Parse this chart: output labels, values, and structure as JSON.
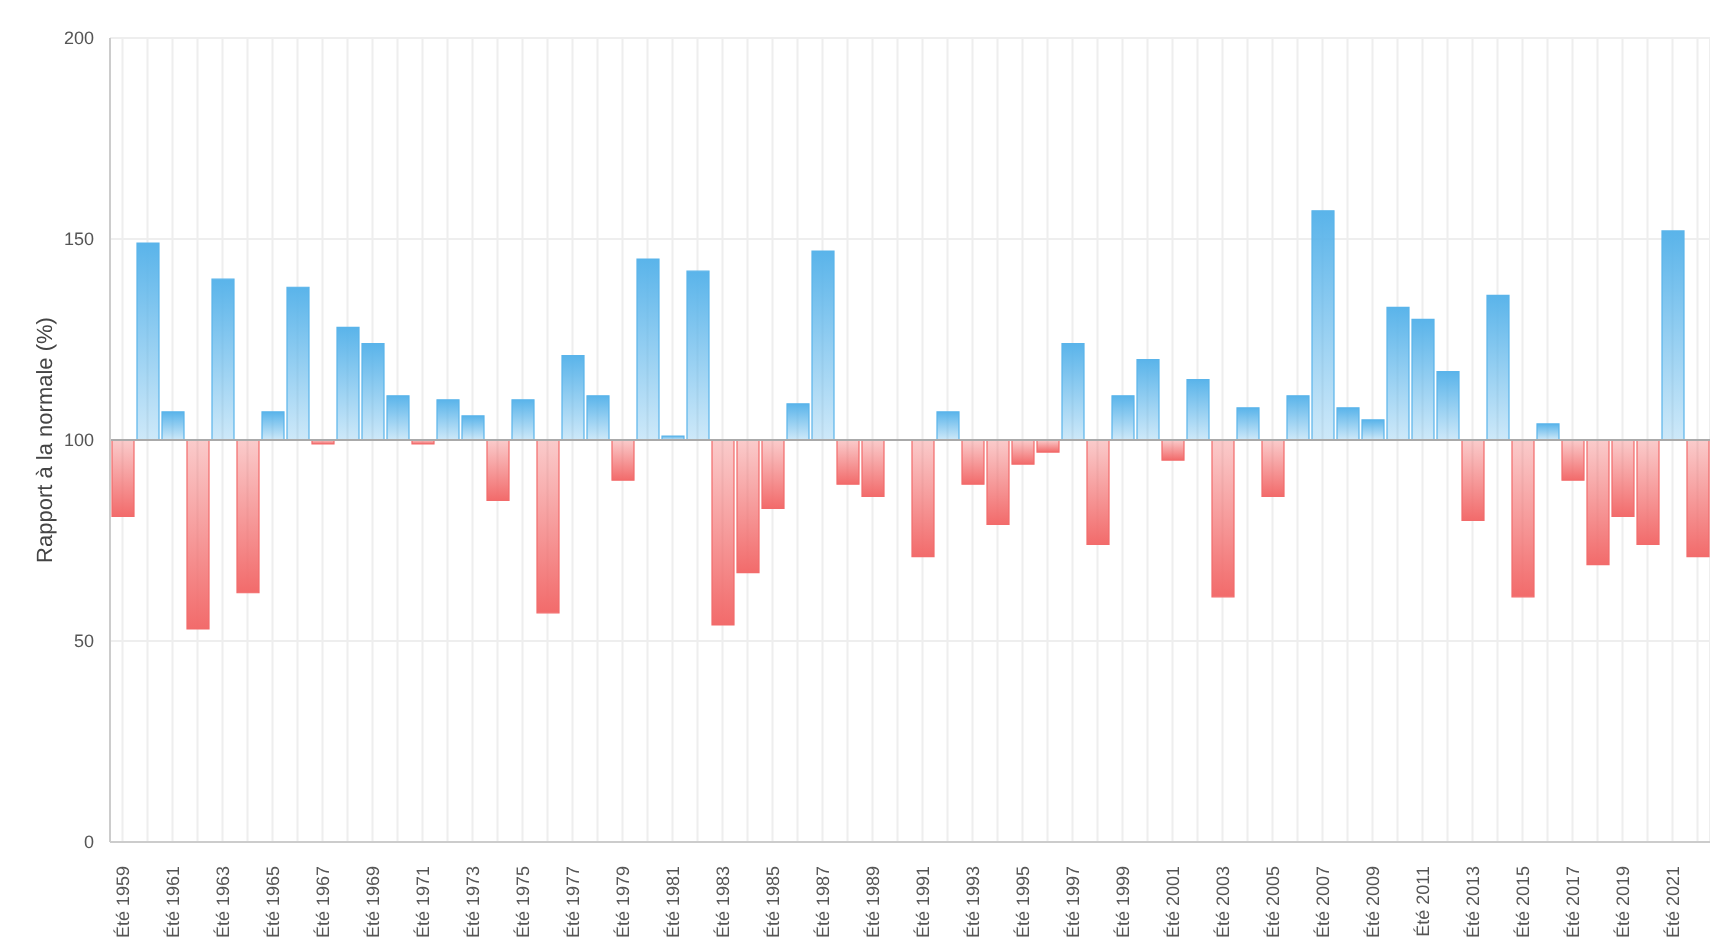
{
  "chart_data": {
    "type": "bar",
    "ylabel": "Rapport à la normale (%)",
    "categories": [
      "Été 1959",
      null,
      "Été 1961",
      null,
      "Été 1963",
      null,
      "Été 1965",
      null,
      "Été 1967",
      null,
      "Été 1969",
      null,
      "Été 1971",
      null,
      "Été 1973",
      null,
      "Été 1975",
      null,
      "Été 1977",
      null,
      "Été 1979",
      null,
      "Été 1981",
      null,
      "Été 1983",
      null,
      "Été 1985",
      null,
      "Été 1987",
      null,
      "Été 1989",
      null,
      "Été 1991",
      null,
      "Été 1993",
      null,
      "Été 1995",
      null,
      "Été 1997",
      null,
      "Été 1999",
      null,
      "Été 2001",
      null,
      "Été 2003",
      null,
      "Été 2005",
      null,
      "Été 2007",
      null,
      "Été 2009",
      null,
      "Été 2011",
      null,
      "Été 2013",
      null,
      "Été 2015",
      null,
      "Été 2017",
      null,
      "Été 2019",
      null,
      "Été 2021",
      null
    ],
    "base": [
      100,
      100,
      100,
      100,
      100,
      100,
      100,
      100,
      100,
      100,
      100,
      100,
      100,
      100,
      100,
      100,
      100,
      100,
      100,
      100,
      100,
      100,
      100,
      100,
      100,
      100,
      100,
      100,
      100,
      100,
      100,
      null,
      100,
      100,
      100,
      100,
      100,
      100,
      100,
      100,
      100,
      100,
      100,
      100,
      100,
      100,
      100,
      100,
      100,
      100,
      100,
      100,
      100,
      100,
      100,
      100,
      100,
      100,
      100,
      100,
      100,
      100,
      100,
      100
    ],
    "values": [
      -19,
      49,
      7,
      -47,
      40,
      -38,
      7,
      38,
      -1,
      28,
      24,
      11,
      -1,
      10,
      6,
      -15,
      10,
      -43,
      21,
      11,
      -10,
      45,
      1,
      42,
      -46,
      -33,
      -17,
      9,
      47,
      -11,
      -14,
      null,
      -29,
      7,
      -11,
      -21,
      -6,
      -3,
      24,
      -26,
      11,
      20,
      -5,
      15,
      -39,
      8,
      -14,
      11,
      57,
      8,
      5,
      33,
      30,
      17,
      -20,
      36,
      -39,
      4,
      -10,
      -31,
      -19,
      -26,
      52,
      -29
    ],
    "colors": [
      "#f26b6b",
      "#5ab4ea",
      "#5ab4ea",
      "#f26b6b",
      "#5ab4ea",
      "#f26b6b",
      "#5ab4ea",
      "#5ab4ea",
      "#f26b6b",
      "#5ab4ea",
      "#5ab4ea",
      "#5ab4ea",
      "#f26b6b",
      "#5ab4ea",
      "#5ab4ea",
      "#f26b6b",
      "#5ab4ea",
      "#f26b6b",
      "#5ab4ea",
      "#5ab4ea",
      "#f26b6b",
      "#5ab4ea",
      "#5ab4ea",
      "#5ab4ea",
      "#f26b6b",
      "#f26b6b",
      "#f26b6b",
      "#5ab4ea",
      "#5ab4ea",
      "#f26b6b",
      "#f26b6b",
      "#5ab4ea",
      "#f26b6b",
      "#5ab4ea",
      "#f26b6b",
      "#f26b6b",
      "#f26b6b",
      "#f26b6b",
      "#5ab4ea",
      "#f26b6b",
      "#5ab4ea",
      "#5ab4ea",
      "#f26b6b",
      "#5ab4ea",
      "#f26b6b",
      "#5ab4ea",
      "#f26b6b",
      "#5ab4ea",
      "#5ab4ea",
      "#5ab4ea",
      "#5ab4ea",
      "#5ab4ea",
      "#5ab4ea",
      "#5ab4ea",
      "#f26b6b",
      "#5ab4ea",
      "#f26b6b",
      "#5ab4ea",
      "#f26b6b",
      "#f26b6b",
      "#f26b6b",
      "#f26b6b",
      "#5ab4ea",
      "#f26b6b"
    ],
    "ylim": [
      0,
      200
    ],
    "yticks": [
      0,
      50,
      100,
      150,
      200
    ],
    "grid": true,
    "ref_lines": [
      {
        "axis": "y",
        "value": 100,
        "color": "#aaaaaa"
      }
    ]
  }
}
